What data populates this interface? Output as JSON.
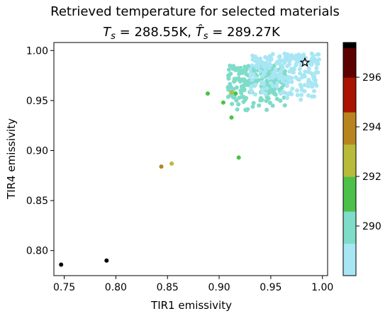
{
  "chart_data": {
    "type": "scatter",
    "title": "Retrieved temperature for selected materials",
    "subtitle": {
      "ts_sym": "T",
      "ts_sub": "s",
      "ts_val": " = 288.55K, ",
      "th_sym": "T̂",
      "th_sub": "s",
      "th_val": " = 289.27K"
    },
    "xlabel": "TIR1 emissivity",
    "ylabel": "TIR4 emissivity",
    "xlim": [
      0.74,
      1.005
    ],
    "ylim": [
      0.775,
      1.008
    ],
    "xticks": [
      0.75,
      0.8,
      0.85,
      0.9,
      0.95,
      1.0
    ],
    "xtick_labels": [
      "0.75",
      "0.80",
      "0.85",
      "0.90",
      "0.95",
      "1.00"
    ],
    "yticks": [
      0.8,
      0.85,
      0.9,
      0.95,
      1.0
    ],
    "ytick_labels": [
      "0.80",
      "0.85",
      "0.90",
      "0.95",
      "1.00"
    ],
    "colorbar": {
      "range": [
        288,
        297.4
      ],
      "ticks": [
        290,
        292,
        294,
        296
      ],
      "tick_labels": [
        "290",
        "292",
        "294",
        "296"
      ],
      "bands": [
        {
          "from": 288.0,
          "to": 289.3,
          "color": "#a8e6f4"
        },
        {
          "from": 289.3,
          "to": 290.6,
          "color": "#7edcc8"
        },
        {
          "from": 290.6,
          "to": 292.0,
          "color": "#4cc048"
        },
        {
          "from": 292.0,
          "to": 293.3,
          "color": "#b8ba3a"
        },
        {
          "from": 293.3,
          "to": 294.6,
          "color": "#b88420"
        },
        {
          "from": 294.6,
          "to": 296.0,
          "color": "#a81400"
        },
        {
          "from": 296.0,
          "to": 297.4,
          "color": "#5c0000"
        },
        {
          "from": 297.4,
          "to": 297.4,
          "color": "#000000"
        }
      ],
      "top_color": "#000000"
    },
    "clusters": [
      {
        "temperature": 289.9,
        "color": "#7edcc8",
        "count": 230,
        "xmin": 0.908,
        "xmax": 0.965,
        "ymin": 0.938,
        "ymax": 0.985
      },
      {
        "temperature": 288.6,
        "color": "#a8e6f4",
        "count": 230,
        "xmin": 0.93,
        "xmax": 0.997,
        "ymin": 0.95,
        "ymax": 0.997
      }
    ],
    "points": [
      {
        "x": 0.747,
        "y": 0.786,
        "t": 297.4,
        "color": "#000000"
      },
      {
        "x": 0.791,
        "y": 0.79,
        "t": 297.4,
        "color": "#000000"
      },
      {
        "x": 0.844,
        "y": 0.884,
        "t": 293.8,
        "color": "#b88420"
      },
      {
        "x": 0.854,
        "y": 0.887,
        "t": 292.6,
        "color": "#b8ba3a"
      },
      {
        "x": 0.889,
        "y": 0.957,
        "t": 291.0,
        "color": "#4cc048"
      },
      {
        "x": 0.904,
        "y": 0.948,
        "t": 291.0,
        "color": "#4cc048"
      },
      {
        "x": 0.912,
        "y": 0.958,
        "t": 292.6,
        "color": "#b8ba3a"
      },
      {
        "x": 0.916,
        "y": 0.957,
        "t": 291.0,
        "color": "#4cc048"
      },
      {
        "x": 0.912,
        "y": 0.933,
        "t": 291.0,
        "color": "#4cc048"
      },
      {
        "x": 0.919,
        "y": 0.893,
        "t": 291.0,
        "color": "#4cc048"
      }
    ],
    "true_point": {
      "x": 0.983,
      "y": 0.988,
      "marker": "star"
    }
  }
}
